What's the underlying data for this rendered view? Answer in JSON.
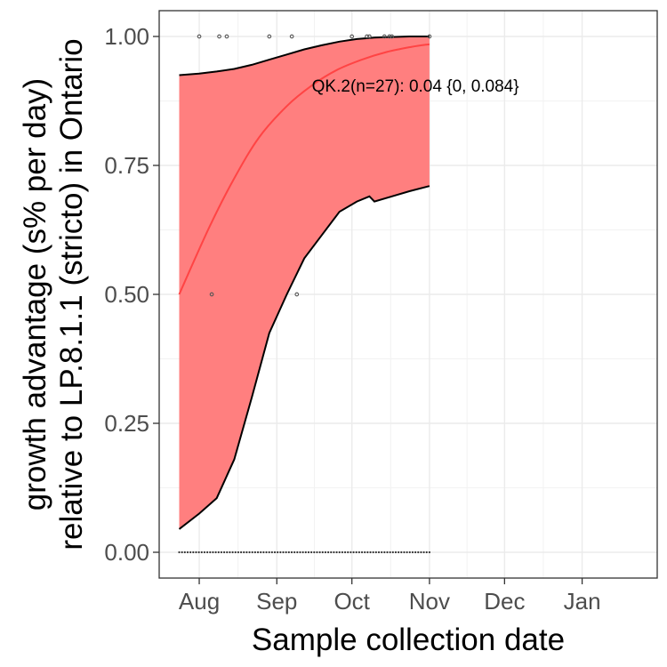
{
  "chart_data": {
    "type": "line",
    "xlabel": "Sample collection date",
    "ylabel_lines": [
      "growth advantage (s% per day)",
      "relative to LP.8.1.1 (stricto) in Ontario"
    ],
    "xlim": [
      "2025-07-16",
      "2026-01-31"
    ],
    "ylim": [
      -0.05,
      1.05
    ],
    "x_ticks": [
      {
        "date": "2025-08-01",
        "label": "Aug"
      },
      {
        "date": "2025-09-01",
        "label": "Sep"
      },
      {
        "date": "2025-10-01",
        "label": "Oct"
      },
      {
        "date": "2025-11-01",
        "label": "Nov"
      },
      {
        "date": "2025-12-01",
        "label": "Dec"
      },
      {
        "date": "2026-01-01",
        "label": "Jan"
      }
    ],
    "y_ticks": [
      {
        "value": 0.0,
        "label": "0.00"
      },
      {
        "value": 0.25,
        "label": "0.25"
      },
      {
        "value": 0.5,
        "label": "0.50"
      },
      {
        "value": 0.75,
        "label": "0.75"
      },
      {
        "value": 1.0,
        "label": "1.00"
      }
    ],
    "grid": true,
    "series": [
      {
        "role": "fit",
        "color": "#ff4444",
        "x": [
          "2025-07-24",
          "2025-08-05",
          "2025-08-15",
          "2025-08-25",
          "2025-09-05",
          "2025-09-15",
          "2025-09-25",
          "2025-10-05",
          "2025-10-15",
          "2025-10-25",
          "2025-11-01"
        ],
        "y": [
          0.5,
          0.63,
          0.725,
          0.805,
          0.865,
          0.905,
          0.935,
          0.955,
          0.97,
          0.98,
          0.985
        ]
      }
    ],
    "ribbon": {
      "color": "#ff7f7f",
      "x": [
        "2025-07-24",
        "2025-08-01",
        "2025-08-08",
        "2025-08-15",
        "2025-08-22",
        "2025-08-29",
        "2025-09-05",
        "2025-09-12",
        "2025-09-19",
        "2025-09-26",
        "2025-10-03",
        "2025-10-08",
        "2025-10-10",
        "2025-10-17",
        "2025-10-24",
        "2025-11-01"
      ],
      "upper": [
        0.925,
        0.928,
        0.932,
        0.937,
        0.945,
        0.955,
        0.965,
        0.975,
        0.983,
        0.99,
        0.995,
        0.997,
        0.998,
        0.999,
        1.0,
        1.0
      ],
      "lower": [
        0.045,
        0.075,
        0.105,
        0.18,
        0.3,
        0.425,
        0.5,
        0.57,
        0.615,
        0.66,
        0.68,
        0.69,
        0.68,
        0.69,
        0.7,
        0.71
      ]
    },
    "observations": {
      "color": "#555555",
      "ones": [
        "2025-08-01",
        "2025-08-09",
        "2025-08-12",
        "2025-08-29",
        "2025-09-07",
        "2025-10-01",
        "2025-10-07",
        "2025-10-08",
        "2025-10-14",
        "2025-10-16",
        "2025-10-17",
        "2025-11-01"
      ],
      "halves": [
        "2025-08-06",
        "2025-09-09"
      ],
      "zeros_range": [
        "2025-07-24",
        "2025-11-01"
      ],
      "zeros_count": 90
    },
    "annotation": {
      "text": "QK.2(n=27): 0.04 {0, 0.084}",
      "x": "2025-09-15",
      "y": 0.905
    }
  }
}
